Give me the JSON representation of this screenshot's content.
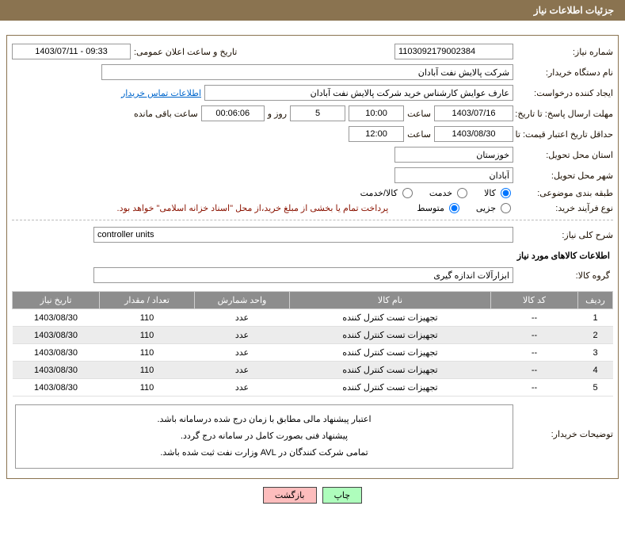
{
  "header": {
    "title": "جزئیات اطلاعات نیاز"
  },
  "fields": {
    "need_no_label": "شماره نیاز:",
    "need_no": "1103092179002384",
    "announce_datetime_label": "تاریخ و ساعت اعلان عمومی:",
    "announce_datetime": "1403/07/11 - 09:33",
    "buyer_org_label": "نام دستگاه خریدار:",
    "buyer_org": "شرکت پالایش نفت آبادان",
    "requestor_label": "ایجاد کننده درخواست:",
    "requestor": "عارف عوایش کارشناس خرید شرکت پالایش نفت آبادان",
    "contact_link": "اطلاعات تماس خریدار",
    "deadline_label": "مهلت ارسال پاسخ: تا تاریخ:",
    "deadline_date": "1403/07/16",
    "time_label1": "ساعت",
    "deadline_time": "10:00",
    "days_text": "روز و",
    "days_val": "5",
    "remaining_label": "ساعت باقی مانده",
    "remaining_time": "00:06:06",
    "min_valid_label": "حداقل تاریخ اعتبار قیمت: تا تاریخ:",
    "min_valid_date": "1403/08/30",
    "time_label2": "ساعت",
    "min_valid_time": "12:00",
    "province_label": "استان محل تحویل:",
    "province": "خوزستان",
    "city_label": "شهر محل تحویل:",
    "city": "آبادان",
    "category_label": "طبقه بندی موضوعی:",
    "cat_opt1": "کالا",
    "cat_opt2": "خدمت",
    "cat_opt3": "کالا/خدمت",
    "process_label": "نوع فرآیند خرید:",
    "proc_opt1": "جزیی",
    "proc_opt2": "متوسط",
    "pay_note": "پرداخت تمام یا بخشی از مبلغ خرید،از محل \"اسناد خزانه اسلامی\" خواهد بود.",
    "brief_label": "شرح کلی نیاز:",
    "brief_value": "controller units",
    "items_section_title": "اطلاعات کالاهای مورد نیاز",
    "group_label": "گروه کالا:",
    "group_value": "ابزارآلات اندازه گیری",
    "buyer_notes_label": "توضیحات خریدار:",
    "buyer_notes_line1": "اعتبار پیشنهاد مالی مطابق با زمان درج شده درسامانه باشد.",
    "buyer_notes_line2": "پیشنهاد فنی بصورت کامل در سامانه درج گردد.",
    "buyer_notes_line3": "تمامی شرکت کنندگان در AVL وزارت نفت ثبت شده باشد."
  },
  "table": {
    "headers": {
      "row": "ردیف",
      "code": "کد کالا",
      "name": "نام کالا",
      "unit": "واحد شمارش",
      "qty": "تعداد / مقدار",
      "date": "تاریخ نیاز"
    },
    "rows": [
      {
        "row": "1",
        "code": "--",
        "name": "تجهیزات تست کنترل کننده",
        "unit": "عدد",
        "qty": "110",
        "date": "1403/08/30"
      },
      {
        "row": "2",
        "code": "--",
        "name": "تجهیزات تست کنترل کننده",
        "unit": "عدد",
        "qty": "110",
        "date": "1403/08/30"
      },
      {
        "row": "3",
        "code": "--",
        "name": "تجهیزات تست کنترل کننده",
        "unit": "عدد",
        "qty": "110",
        "date": "1403/08/30"
      },
      {
        "row": "4",
        "code": "--",
        "name": "تجهیزات تست کنترل کننده",
        "unit": "عدد",
        "qty": "110",
        "date": "1403/08/30"
      },
      {
        "row": "5",
        "code": "--",
        "name": "تجهیزات تست کنترل کننده",
        "unit": "عدد",
        "qty": "110",
        "date": "1403/08/30"
      }
    ]
  },
  "buttons": {
    "print": "چاپ",
    "back": "بازگشت"
  }
}
